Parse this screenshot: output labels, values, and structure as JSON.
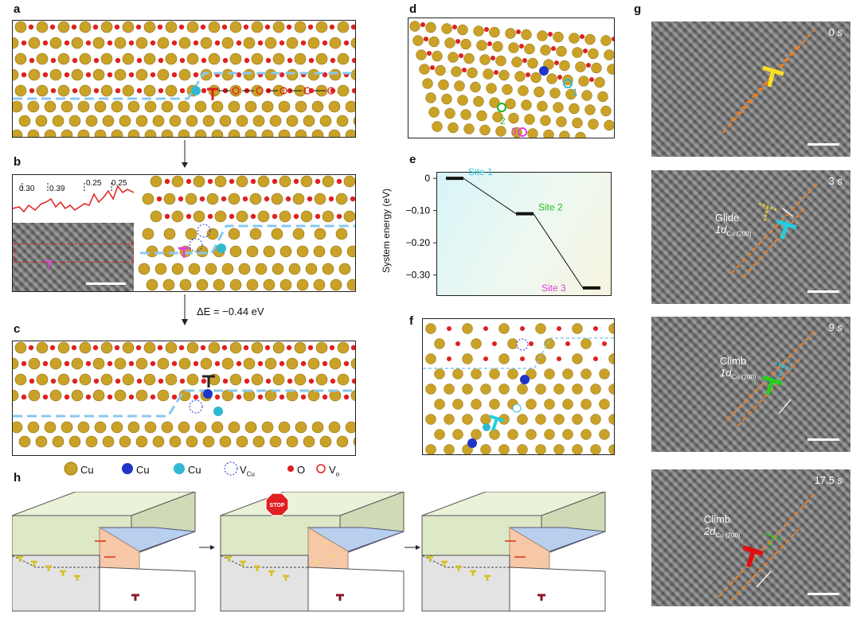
{
  "panel_labels": {
    "a": "a",
    "b": "b",
    "c": "c",
    "d": "d",
    "e": "e",
    "f": "f",
    "g": "g",
    "h": "h"
  },
  "energy_label": "ΔE = −0.44 eV",
  "b_values": [
    "0.30",
    "0.39",
    "0.25",
    "0.25"
  ],
  "d_site_numbers": [
    "1",
    "2",
    "3"
  ],
  "legend": {
    "cu_gold": "Cu",
    "cu_blue": "Cu",
    "cu_cyan": "Cu",
    "vcu": "V",
    "vcu_sub": "Cu",
    "o": "O",
    "vo": "V",
    "vo_sub": "o"
  },
  "g_frames": [
    {
      "time": "0 s",
      "label": "",
      "sub": ""
    },
    {
      "time": "3 s",
      "label": "Glide",
      "coef": "1d",
      "sub": "Cu (200)"
    },
    {
      "time": "9 s",
      "label": "Climb",
      "coef": "1d",
      "sub": "Cu (200)"
    },
    {
      "time": "17.5 s",
      "label": "Climb",
      "coef": "2d",
      "sub": "Cu (200)"
    }
  ],
  "h_stop_label": "STOP",
  "colors": {
    "cu": "#c9a227",
    "o": "#e02020",
    "cu_blue": "#2035c8",
    "cu_cyan": "#30b8d0",
    "dashed": "#88c8ee"
  },
  "chart_data": {
    "type": "line",
    "ylabel": "System energy (eV)",
    "yticks": [
      "0",
      "−0.10",
      "−0.20",
      "−0.30"
    ],
    "ylim": [
      -0.36,
      0.02
    ],
    "points": [
      {
        "name": "Site 1",
        "y": 0
      },
      {
        "name": "Site 2",
        "y": -0.11
      },
      {
        "name": "Site 3",
        "y": -0.34
      }
    ]
  }
}
